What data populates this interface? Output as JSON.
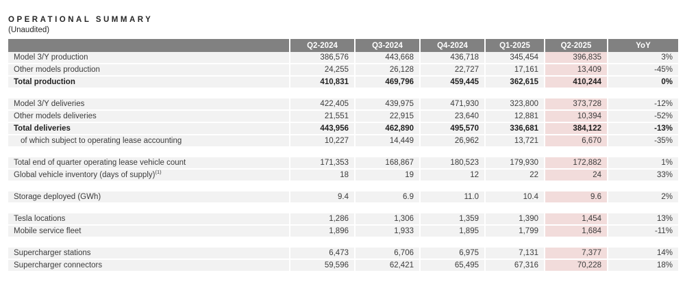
{
  "page": {
    "title": "OPERATIONAL SUMMARY",
    "subtitle": "(Unaudited)"
  },
  "colors": {
    "header_bg": "#818181",
    "header_text": "#ffffff",
    "row_bg": "#f2f2f2",
    "highlight_column_bg": "#f2dcdb",
    "body_text": "#3b3b3b"
  },
  "table": {
    "columns": [
      "",
      "Q2-2024",
      "Q3-2024",
      "Q4-2024",
      "Q1-2025",
      "Q2-2025",
      "YoY"
    ],
    "highlight_column": "Q2-2025",
    "sections": [
      {
        "rows": [
          {
            "label": "Model 3/Y production",
            "values": [
              "386,576",
              "443,668",
              "436,718",
              "345,454",
              "396,835"
            ],
            "yoy": "3%"
          },
          {
            "label": "Other models production",
            "values": [
              "24,255",
              "26,128",
              "22,727",
              "17,161",
              "13,409"
            ],
            "yoy": "-45%"
          },
          {
            "label": "Total production",
            "values": [
              "410,831",
              "469,796",
              "459,445",
              "362,615",
              "410,244"
            ],
            "yoy": "0%",
            "bold": true
          }
        ]
      },
      {
        "rows": [
          {
            "label": "Model 3/Y deliveries",
            "values": [
              "422,405",
              "439,975",
              "471,930",
              "323,800",
              "373,728"
            ],
            "yoy": "-12%"
          },
          {
            "label": "Other models deliveries",
            "values": [
              "21,551",
              "22,915",
              "23,640",
              "12,881",
              "10,394"
            ],
            "yoy": "-52%"
          },
          {
            "label": "Total deliveries",
            "values": [
              "443,956",
              "462,890",
              "495,570",
              "336,681",
              "384,122"
            ],
            "yoy": "-13%",
            "bold": true
          },
          {
            "label": "of which subject to operating lease accounting",
            "values": [
              "10,227",
              "14,449",
              "26,962",
              "13,721",
              "6,670"
            ],
            "yoy": "-35%",
            "indent": true
          }
        ]
      },
      {
        "rows": [
          {
            "label": "Total end of quarter operating lease vehicle count",
            "values": [
              "171,353",
              "168,867",
              "180,523",
              "179,930",
              "172,882"
            ],
            "yoy": "1%"
          },
          {
            "label": "Global vehicle inventory (days of supply)",
            "sup": "(1)",
            "values": [
              "18",
              "19",
              "12",
              "22",
              "24"
            ],
            "yoy": "33%"
          }
        ]
      },
      {
        "rows": [
          {
            "label": "Storage deployed (GWh)",
            "values": [
              "9.4",
              "6.9",
              "11.0",
              "10.4",
              "9.6"
            ],
            "yoy": "2%"
          }
        ]
      },
      {
        "rows": [
          {
            "label": "Tesla locations",
            "values": [
              "1,286",
              "1,306",
              "1,359",
              "1,390",
              "1,454"
            ],
            "yoy": "13%"
          },
          {
            "label": "Mobile service fleet",
            "values": [
              "1,896",
              "1,933",
              "1,895",
              "1,799",
              "1,684"
            ],
            "yoy": "-11%"
          }
        ]
      },
      {
        "rows": [
          {
            "label": "Supercharger stations",
            "values": [
              "6,473",
              "6,706",
              "6,975",
              "7,131",
              "7,377"
            ],
            "yoy": "14%"
          },
          {
            "label": "Supercharger connectors",
            "values": [
              "59,596",
              "62,421",
              "65,495",
              "67,316",
              "70,228"
            ],
            "yoy": "18%"
          }
        ]
      }
    ]
  }
}
